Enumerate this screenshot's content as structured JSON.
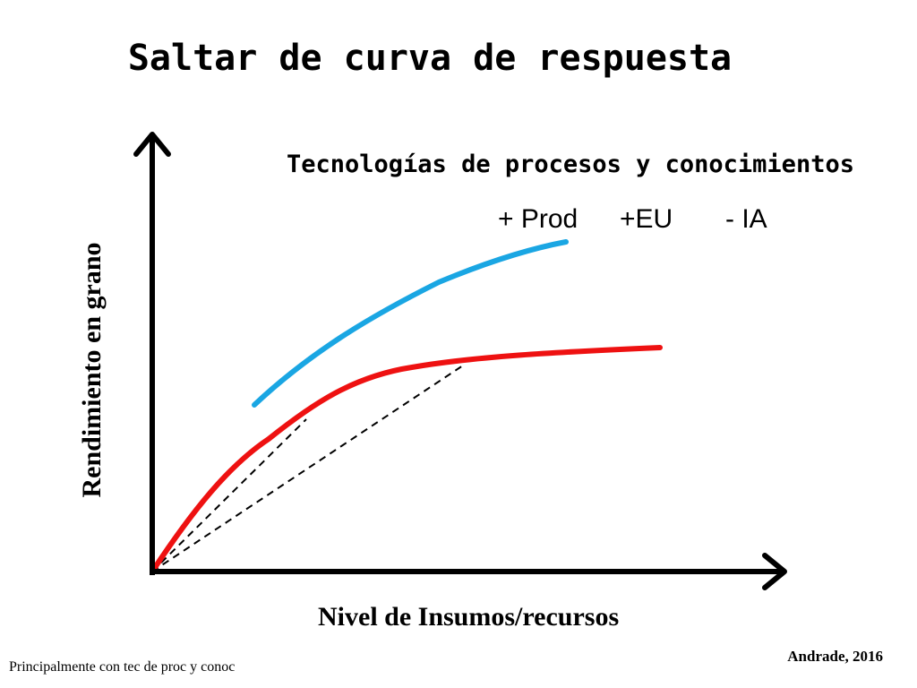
{
  "title": "Saltar de curva de respuesta",
  "subtitle": "Tecnologías de procesos y conocimientos",
  "effects": [
    "+ Prod",
    "+EU",
    "- IA"
  ],
  "axes": {
    "y_label": "Rendimiento en grano",
    "x_label": "Nivel de Insumos/recursos"
  },
  "curves": [
    {
      "id": "baseline",
      "color": "#ee1111"
    },
    {
      "id": "improved",
      "color": "#1aa6e3"
    }
  ],
  "credit": "Andrade, 2016",
  "footnote": "Principalmente con tec de proc y conoc"
}
